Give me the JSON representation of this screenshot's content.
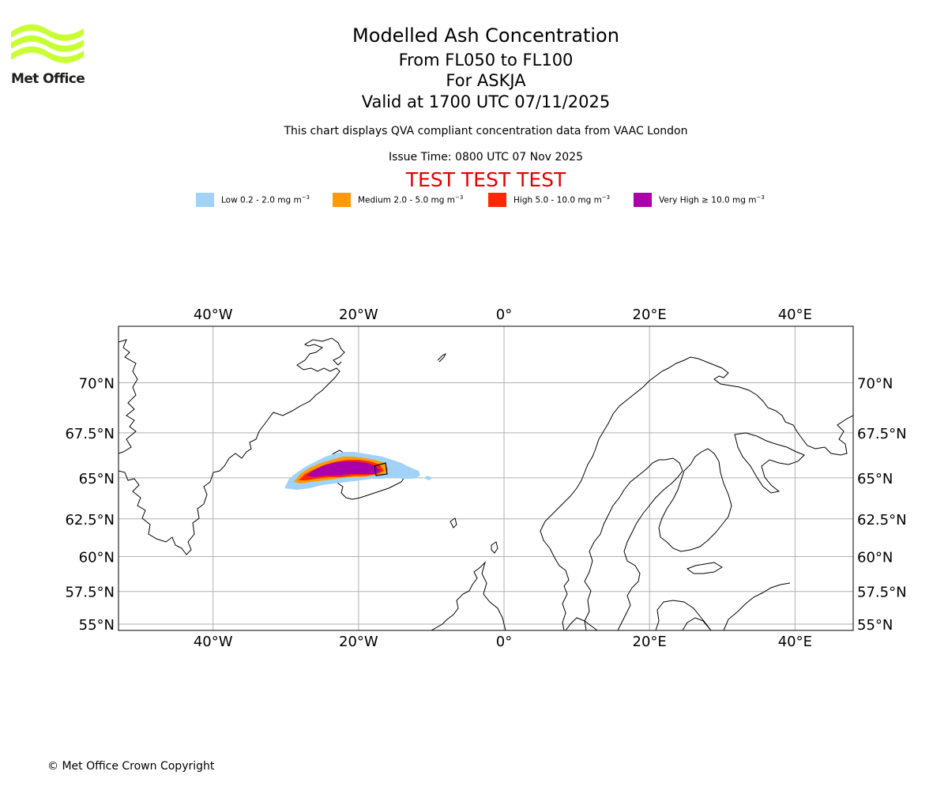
{
  "logo": {
    "text": "Met Office",
    "color": "#c8ff32"
  },
  "header": {
    "title": "Modelled Ash Concentration",
    "levels": "From FL050 to FL100",
    "volcano": "For ASKJA",
    "valid": "Valid at 1700 UTC 07/11/2025",
    "compliance": "This chart displays QVA compliant concentration data from VAAC London",
    "issue_time": "Issue Time: 0800 UTC 07 Nov 2025",
    "test_banner": "TEST TEST TEST",
    "test_color": "#e60000"
  },
  "legend": [
    {
      "label": "Low 0.2 - 2.0 mg m",
      "color": "#a0d2fa"
    },
    {
      "label": "Medium 2.0 - 5.0 mg m",
      "color": "#ff9a00"
    },
    {
      "label": "High 5.0 - 10.0 mg m",
      "color": "#ff2800"
    },
    {
      "label": "Very High ≥ 10.0 mg m",
      "color": "#aa00aa"
    }
  ],
  "legend_unit_exponent": "−3",
  "map": {
    "lon_range": [
      -53,
      48
    ],
    "lat_range": [
      54.5,
      72.5
    ],
    "lon_ticks": [
      {
        "value": -40,
        "label": "40°W"
      },
      {
        "value": -20,
        "label": "20°W"
      },
      {
        "value": 0,
        "label": "0°"
      },
      {
        "value": 20,
        "label": "20°E"
      },
      {
        "value": 40,
        "label": "40°E"
      }
    ],
    "lat_ticks": [
      {
        "value": 70,
        "label": "70°N"
      },
      {
        "value": 67.5,
        "label": "67.5°N"
      },
      {
        "value": 65,
        "label": "65°N"
      },
      {
        "value": 62.5,
        "label": "62.5°N"
      },
      {
        "value": 60,
        "label": "60°N"
      },
      {
        "value": 57.5,
        "label": "57.5°N"
      },
      {
        "value": 55,
        "label": "55°N"
      }
    ],
    "gridlines": true
  },
  "footer": {
    "copyright": "© Met Office Crown Copyright"
  }
}
